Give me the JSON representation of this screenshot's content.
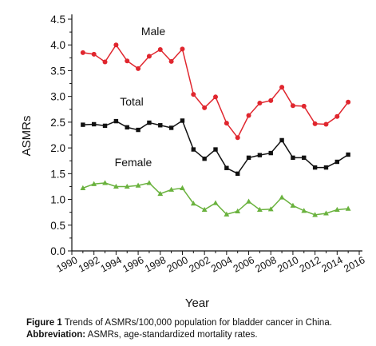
{
  "chart_data": {
    "type": "line",
    "xlabel": "Year",
    "ylabel": "ASMRs",
    "xlim": [
      1990,
      2016
    ],
    "ylim": [
      0.0,
      4.5
    ],
    "x_ticks": [
      "1990",
      "1992",
      "1994",
      "1996",
      "1998",
      "2000",
      "2002",
      "2004",
      "2006",
      "2008",
      "2010",
      "2012",
      "2014",
      "2016"
    ],
    "y_ticks": [
      "0.0",
      "0.5",
      "1.0",
      "1.5",
      "2.0",
      "2.5",
      "3.0",
      "3.5",
      "4.0",
      "4.5"
    ],
    "x": [
      1991,
      1992,
      1993,
      1994,
      1995,
      1996,
      1997,
      1998,
      1999,
      2000,
      2001,
      2002,
      2003,
      2004,
      2005,
      2006,
      2007,
      2008,
      2009,
      2010,
      2011,
      2012,
      2013,
      2014,
      2015
    ],
    "series": [
      {
        "name": "Male",
        "color": "#e0262e",
        "marker": "circle",
        "values": [
          3.85,
          3.82,
          3.67,
          4.0,
          3.69,
          3.54,
          3.78,
          3.91,
          3.68,
          3.92,
          3.04,
          2.78,
          2.99,
          2.48,
          2.2,
          2.63,
          2.87,
          2.92,
          3.18,
          2.82,
          2.81,
          2.47,
          2.46,
          2.61,
          2.89
        ]
      },
      {
        "name": "Total",
        "color": "#111111",
        "marker": "square",
        "values": [
          2.45,
          2.46,
          2.43,
          2.52,
          2.4,
          2.35,
          2.49,
          2.44,
          2.39,
          2.53,
          1.97,
          1.79,
          1.97,
          1.61,
          1.5,
          1.81,
          1.86,
          1.9,
          2.15,
          1.81,
          1.81,
          1.62,
          1.62,
          1.73,
          1.87
        ]
      },
      {
        "name": "Female",
        "color": "#6ab23e",
        "marker": "triangle",
        "values": [
          1.22,
          1.3,
          1.32,
          1.25,
          1.25,
          1.27,
          1.32,
          1.11,
          1.19,
          1.22,
          0.92,
          0.8,
          0.93,
          0.71,
          0.77,
          0.96,
          0.8,
          0.81,
          1.04,
          0.88,
          0.78,
          0.7,
          0.73,
          0.8,
          0.82
        ]
      }
    ],
    "series_labels": [
      {
        "text": "Male",
        "series": "Male"
      },
      {
        "text": "Total",
        "series": "Total"
      },
      {
        "text": "Female",
        "series": "Female"
      }
    ]
  },
  "caption": {
    "figure_label": "Figure 1",
    "figure_text": " Trends of ASMRs/100,000 population for bladder cancer in China.",
    "abbrev_label": "Abbreviation:",
    "abbrev_text": " ASMRs, age-standardized mortality rates."
  }
}
